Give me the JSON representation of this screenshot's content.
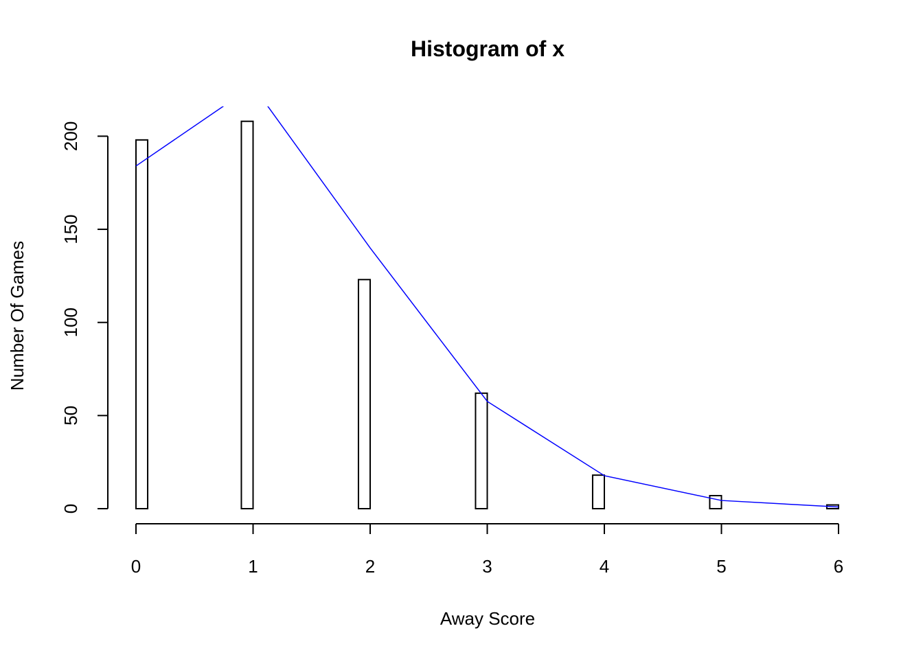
{
  "chart_data": {
    "type": "histogram",
    "title": "Histogram of x",
    "x_label": "Away Score",
    "y_label": "Number Of Games",
    "bins": [
      0,
      0.1,
      0.2,
      0.3,
      0.4,
      0.5,
      0.6,
      0.7,
      0.8,
      0.9,
      1,
      1.1,
      1.2,
      1.3,
      1.4,
      1.5,
      1.6,
      1.7,
      1.8,
      1.9,
      2,
      2.1,
      2.2,
      2.3,
      2.4,
      2.5,
      2.6,
      2.7,
      2.8,
      2.9,
      3,
      3.1,
      3.2,
      3.3,
      3.4,
      3.5,
      3.6,
      3.7,
      3.8,
      3.9,
      4,
      4.1,
      4.2,
      4.3,
      4.4,
      4.5,
      4.6,
      4.7,
      4.8,
      4.9,
      5,
      5.1,
      5.2,
      5.3,
      5.4,
      5.5,
      5.6,
      5.7,
      5.8,
      5.9,
      6
    ],
    "counts": [
      198,
      0,
      0,
      0,
      0,
      0,
      0,
      0,
      0,
      208,
      0,
      0,
      0,
      0,
      0,
      0,
      0,
      0,
      0,
      123,
      0,
      0,
      0,
      0,
      0,
      0,
      0,
      0,
      0,
      62,
      0,
      0,
      0,
      0,
      0,
      0,
      0,
      0,
      0,
      18,
      0,
      0,
      0,
      0,
      0,
      0,
      0,
      0,
      0,
      7,
      0,
      0,
      0,
      0,
      0,
      0,
      0,
      0,
      0,
      2
    ],
    "bar_color": "#ffffff",
    "bar_border": "#000000",
    "line": {
      "x": [
        0,
        1,
        2,
        3,
        4,
        5,
        6
      ],
      "values": [
        184,
        227,
        140,
        57.6,
        17.7,
        4.4,
        0.9
      ],
      "color": "#0000ff"
    },
    "xlim": [
      0,
      6
    ],
    "ylim": [
      0,
      216
    ],
    "xticks": [
      0,
      1,
      2,
      3,
      4,
      5,
      6
    ],
    "yticks": [
      0,
      50,
      100,
      150,
      200
    ]
  }
}
